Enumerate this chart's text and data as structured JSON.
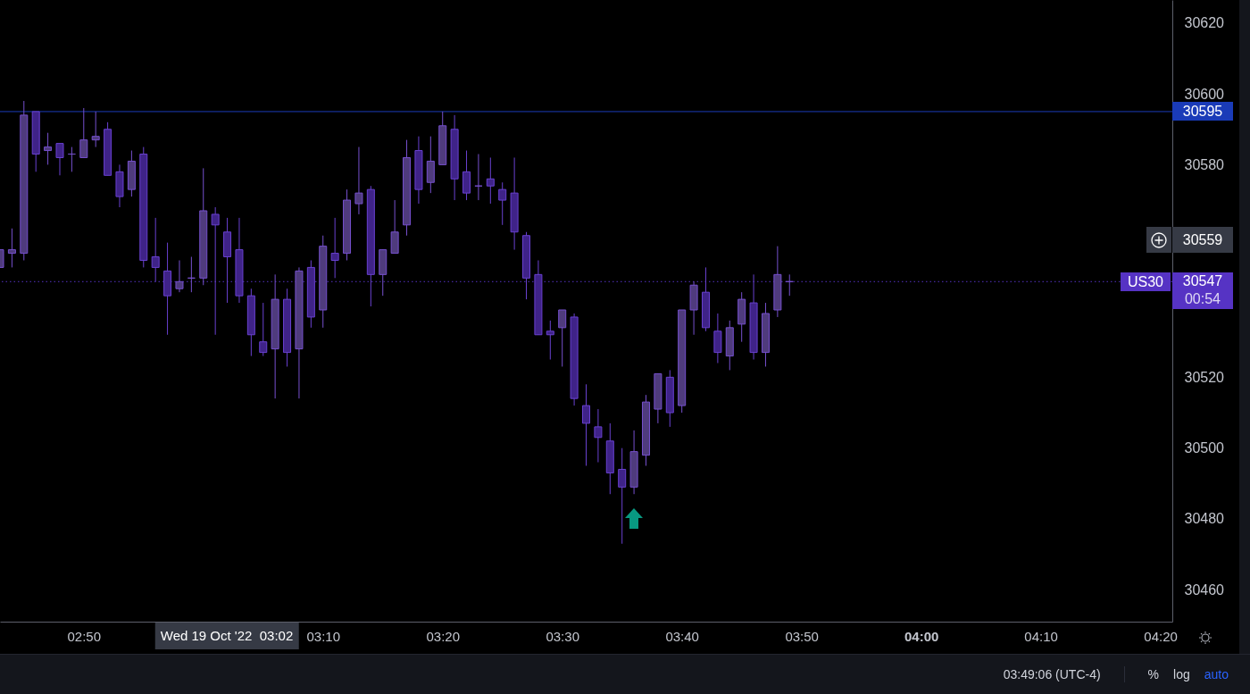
{
  "chart_data": {
    "type": "candlestick",
    "x": [
      "2022-10-19T02:43",
      "2022-10-19T02:44",
      "2022-10-19T02:45",
      "2022-10-19T02:46",
      "2022-10-19T02:47",
      "2022-10-19T02:48",
      "2022-10-19T02:49",
      "2022-10-19T02:50",
      "2022-10-19T02:51",
      "2022-10-19T02:52",
      "2022-10-19T02:53",
      "2022-10-19T02:54",
      "2022-10-19T02:55",
      "2022-10-19T02:56",
      "2022-10-19T02:57",
      "2022-10-19T02:58",
      "2022-10-19T02:59",
      "2022-10-19T03:00",
      "2022-10-19T03:01",
      "2022-10-19T03:02",
      "2022-10-19T03:03",
      "2022-10-19T03:04",
      "2022-10-19T03:05",
      "2022-10-19T03:06",
      "2022-10-19T03:07",
      "2022-10-19T03:08",
      "2022-10-19T03:09",
      "2022-10-19T03:10",
      "2022-10-19T03:11",
      "2022-10-19T03:12",
      "2022-10-19T03:13",
      "2022-10-19T03:14",
      "2022-10-19T03:15",
      "2022-10-19T03:16",
      "2022-10-19T03:17",
      "2022-10-19T03:18",
      "2022-10-19T03:19",
      "2022-10-19T03:20",
      "2022-10-19T03:21",
      "2022-10-19T03:22",
      "2022-10-19T03:23",
      "2022-10-19T03:24",
      "2022-10-19T03:25",
      "2022-10-19T03:26",
      "2022-10-19T03:27",
      "2022-10-19T03:28",
      "2022-10-19T03:29",
      "2022-10-19T03:30",
      "2022-10-19T03:31",
      "2022-10-19T03:32",
      "2022-10-19T03:33",
      "2022-10-19T03:34",
      "2022-10-19T03:35",
      "2022-10-19T03:36",
      "2022-10-19T03:37",
      "2022-10-19T03:38",
      "2022-10-19T03:39",
      "2022-10-19T03:40",
      "2022-10-19T03:41",
      "2022-10-19T03:42",
      "2022-10-19T03:43",
      "2022-10-19T03:44",
      "2022-10-19T03:45",
      "2022-10-19T03:46",
      "2022-10-19T03:47",
      "2022-10-19T03:48",
      "2022-10-19T03:49"
    ],
    "ohlc": [
      [
        30551,
        30556,
        30551,
        30556
      ],
      [
        30555,
        30562,
        30551,
        30556
      ],
      [
        30555,
        30598,
        30553,
        30594
      ],
      [
        30595,
        30595,
        30578,
        30583
      ],
      [
        30584,
        30589,
        30580,
        30585
      ],
      [
        30586,
        30586,
        30577,
        30582
      ],
      [
        30583,
        30585,
        30578,
        30583
      ],
      [
        30582,
        30596,
        30582,
        30587
      ],
      [
        30587,
        30595,
        30585,
        30588
      ],
      [
        30590,
        30592,
        30577,
        30577
      ],
      [
        30578,
        30580,
        30568,
        30571
      ],
      [
        30573,
        30584,
        30571,
        30581
      ],
      [
        30583,
        30585,
        30551,
        30553
      ],
      [
        30554,
        30565,
        30547,
        30551
      ],
      [
        30550,
        30558,
        30532,
        30543
      ],
      [
        30545,
        30553,
        30544,
        30547
      ],
      [
        30548,
        30554,
        30544,
        30548
      ],
      [
        30548,
        30579,
        30546,
        30567
      ],
      [
        30566,
        30568,
        30532,
        30563
      ],
      [
        30561,
        30565,
        30541,
        30554
      ],
      [
        30556,
        30565,
        30541,
        30543
      ],
      [
        30543,
        30545,
        30526,
        30532
      ],
      [
        30530,
        30541,
        30526,
        30527
      ],
      [
        30528,
        30549,
        30514,
        30542
      ],
      [
        30542,
        30545,
        30523,
        30527
      ],
      [
        30528,
        30551,
        30514,
        30550
      ],
      [
        30551,
        30553,
        30534,
        30537
      ],
      [
        30539,
        30560,
        30534,
        30557
      ],
      [
        30555,
        30565,
        30548,
        30553
      ],
      [
        30555,
        30573,
        30553,
        30570
      ],
      [
        30569,
        30585,
        30566,
        30572
      ],
      [
        30573,
        30574,
        30540,
        30549
      ],
      [
        30549,
        30556,
        30543,
        30556
      ],
      [
        30555,
        30570,
        30555,
        30561
      ],
      [
        30563,
        30587,
        30560,
        30582
      ],
      [
        30584,
        30588,
        30569,
        30573
      ],
      [
        30575,
        30588,
        30572,
        30581
      ],
      [
        30580,
        30595,
        30580,
        30591
      ],
      [
        30590,
        30594,
        30570,
        30576
      ],
      [
        30578,
        30584,
        30570,
        30572
      ],
      [
        30574,
        30583,
        30570,
        30574
      ],
      [
        30576,
        30582,
        30569,
        30574
      ],
      [
        30573,
        30575,
        30563,
        30570
      ],
      [
        30572,
        30582,
        30556,
        30561
      ],
      [
        30560,
        30561,
        30542,
        30548
      ],
      [
        30549,
        30553,
        30532,
        30532
      ],
      [
        30533,
        30536,
        30525,
        30532
      ],
      [
        30534,
        30539,
        30523,
        30539
      ],
      [
        30537,
        30538,
        30512,
        30514
      ],
      [
        30512,
        30518,
        30495,
        30507
      ],
      [
        30506,
        30511,
        30496,
        30503
      ],
      [
        30502,
        30507,
        30487,
        30493
      ],
      [
        30494,
        30500,
        30473,
        30489
      ],
      [
        30489,
        30505,
        30487,
        30499
      ],
      [
        30498,
        30515,
        30495,
        30513
      ],
      [
        30511,
        30521,
        30507,
        30521
      ],
      [
        30520,
        30522,
        30506,
        30510
      ],
      [
        30512,
        30539,
        30510,
        30539
      ],
      [
        30539,
        30547,
        30532,
        30546
      ],
      [
        30544,
        30551,
        30533,
        30534
      ],
      [
        30533,
        30538,
        30524,
        30527
      ],
      [
        30526,
        30536,
        30522,
        30534
      ],
      [
        30535,
        30544,
        30530,
        30542
      ],
      [
        30541,
        30549,
        30525,
        30527
      ],
      [
        30527,
        30541,
        30523,
        30538
      ],
      [
        30539,
        30557,
        30537,
        30549
      ],
      [
        30547,
        30549,
        30543,
        30547
      ]
    ],
    "colors": [
      "#4f3b7d",
      "#4f3b7d",
      "#4f3b7d",
      "#3f2388",
      "#4f3b7d",
      "#3f2388",
      "#7650ce",
      "#4f3b7d",
      "#4f3b7d",
      "#3f2388",
      "#3f2388",
      "#4f3b7d",
      "#3f2388",
      "#3f2388",
      "#3f2388",
      "#4f3b7d",
      "#7650ce",
      "#4f3b7d",
      "#3f2388",
      "#3f2388",
      "#3f2388",
      "#3f2388",
      "#3f2388",
      "#4f3b7d",
      "#3f2388",
      "#4f3b7d",
      "#3f2388",
      "#4f3b7d",
      "#3f2388",
      "#4f3b7d",
      "#4f3b7d",
      "#3f2388",
      "#4f3b7d",
      "#4f3b7d",
      "#4f3b7d",
      "#3f2388",
      "#4f3b7d",
      "#4f3b7d",
      "#3f2388",
      "#3f2388",
      "#7650ce",
      "#3f2388",
      "#3f2388",
      "#3f2388",
      "#3f2388",
      "#3f2388",
      "#3f2388",
      "#4f3b7d",
      "#3f2388",
      "#3f2388",
      "#3f2388",
      "#3f2388",
      "#3f2388",
      "#4f3b7d",
      "#4f3b7d",
      "#4f3b7d",
      "#3f2388",
      "#4f3b7d",
      "#4f3b7d",
      "#3f2388",
      "#3f2388",
      "#4f3b7d",
      "#4f3b7d",
      "#3f2388",
      "#4f3b7d",
      "#4f3b7d",
      "#7650ce"
    ],
    "xlim": [
      "2022-10-19T02:43",
      "2022-10-19T04:21"
    ],
    "xticks": [
      {
        "value": "2022-10-19T02:50",
        "label": "02:50"
      },
      {
        "value": "2022-10-19T03:10",
        "label": "03:10"
      },
      {
        "value": "2022-10-19T03:20",
        "label": "03:20"
      },
      {
        "value": "2022-10-19T03:30",
        "label": "03:30"
      },
      {
        "value": "2022-10-19T03:40",
        "label": "03:40"
      },
      {
        "value": "2022-10-19T03:50",
        "label": "03:50"
      },
      {
        "value": "2022-10-19T04:00",
        "label": "04:00"
      },
      {
        "value": "2022-10-19T04:10",
        "label": "04:10"
      },
      {
        "value": "2022-10-19T04:20",
        "label": "04:20"
      }
    ],
    "ylim": [
      30451,
      30626.5
    ],
    "yticks": [
      30460,
      30480,
      30500,
      30520,
      30580,
      30600,
      30620
    ],
    "ref_lines": [
      {
        "axis": "y",
        "value": 30595,
        "label": "30595",
        "color": "#1a3bb8",
        "line_style": "solid"
      },
      {
        "axis": "y",
        "value": 30547,
        "label": "30547",
        "color": "#5633c4",
        "line_style": "dotted"
      }
    ],
    "annotations": [
      "US30",
      "00:54",
      "30559",
      "Wed 19 Oct '22  03:02",
      "03:49:06 (UTC-4)",
      "%",
      "log",
      "auto"
    ]
  }
}
